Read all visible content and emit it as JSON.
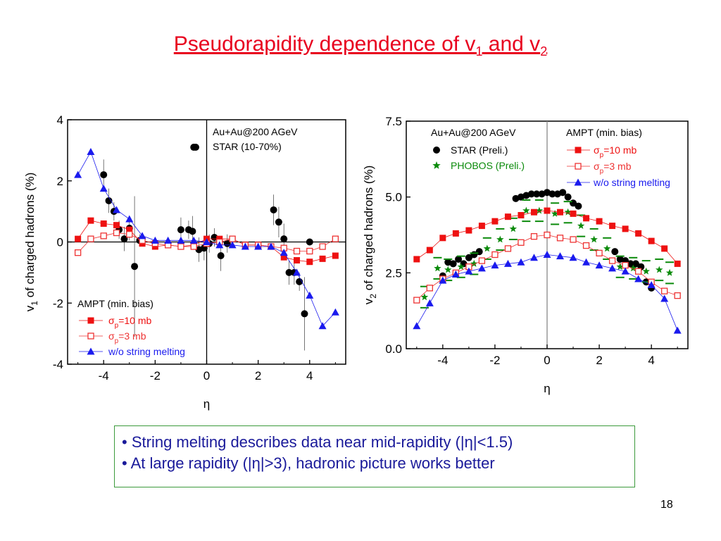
{
  "slide": {
    "title_main": "Pseudorapidity dependence of v",
    "title_sub1": "1",
    "title_mid": " and v",
    "title_sub2": "2",
    "bullets": [
      "String melting describes data near mid-rapidity (|η|<1.5)",
      "At large rapidity (|η|>3), hadronic picture works better"
    ],
    "page_number": "18"
  },
  "chart_data": [
    {
      "type": "scatter",
      "xlabel": "η",
      "ylabel_parts": [
        "v",
        "1",
        " of charged hadrons (%)"
      ],
      "xlim": [
        -5.4,
        5.4
      ],
      "ylim": [
        -4,
        4
      ],
      "xticks": [
        "-4",
        "-2",
        "0",
        "2",
        "4"
      ],
      "yticks": [
        "4",
        "2",
        "0",
        "-2",
        "-4"
      ],
      "xtick_values": [
        -4,
        -2,
        0,
        2,
        4
      ],
      "ytick_values": [
        4,
        2,
        0,
        -2,
        -4
      ],
      "annotation_lines": [
        "Au+Au@200 AGeV",
        "STAR (10-70%)"
      ],
      "legend_title": "AMPT (min. bias)",
      "series": [
        {
          "name": "STAR (10-70%)",
          "marker": "circle",
          "color": "#000000",
          "x": [
            -4.0,
            -3.8,
            -3.6,
            -3.4,
            -3.2,
            -3.0,
            -2.8,
            -2.6,
            -1.0,
            -0.7,
            -0.55,
            -0.3,
            -0.1,
            0.1,
            0.3,
            0.55,
            0.8,
            2.6,
            2.8,
            3.0,
            3.2,
            3.4,
            3.6,
            3.8,
            4.0,
            -0.5
          ],
          "y": [
            2.2,
            1.35,
            1.0,
            0.4,
            0.1,
            0.45,
            -0.8,
            0.05,
            0.4,
            0.4,
            0.35,
            -0.25,
            -0.2,
            -0.05,
            0.15,
            -0.45,
            -0.05,
            1.05,
            0.65,
            0.1,
            -1.0,
            -1.0,
            -1.3,
            -2.35,
            0.0,
            3.1
          ],
          "err": [
            0.5,
            0.4,
            0.3,
            0.3,
            0.4,
            0.4,
            2.3,
            0.2,
            0.4,
            0.3,
            0.5,
            0.4,
            0.4,
            0.3,
            0.3,
            0.5,
            0.3,
            0.5,
            0.5,
            0.5,
            0.4,
            0.4,
            0.3,
            1.2,
            0.0,
            0.0
          ]
        },
        {
          "name": "σp=10 mb",
          "marker": "square",
          "color": "#ee1111",
          "x": [
            -5.0,
            -4.5,
            -4.0,
            -3.5,
            -3.0,
            -2.5,
            -2.0,
            -1.5,
            -1.0,
            -0.5,
            0.0,
            0.5,
            1.0,
            1.5,
            2.0,
            2.5,
            3.0,
            3.5,
            4.0,
            4.5,
            5.0
          ],
          "y": [
            0.1,
            0.7,
            0.6,
            0.55,
            0.4,
            -0.05,
            -0.15,
            -0.1,
            -0.15,
            -0.1,
            0.1,
            0.1,
            0.1,
            -0.1,
            -0.1,
            -0.15,
            -0.5,
            -0.6,
            -0.65,
            -0.55,
            -0.45
          ]
        },
        {
          "name": "σp=3 mb",
          "marker": "open-square",
          "color": "#ee3333",
          "x": [
            -5.0,
            -4.5,
            -4.0,
            -3.5,
            -3.0,
            -2.5,
            -2.0,
            -1.5,
            -1.0,
            -0.5,
            0.0,
            0.5,
            1.0,
            1.5,
            2.0,
            2.5,
            3.0,
            3.5,
            4.0,
            4.5,
            5.0
          ],
          "y": [
            -0.35,
            0.1,
            0.2,
            0.3,
            0.25,
            0.05,
            -0.05,
            -0.1,
            -0.15,
            -0.15,
            -0.05,
            0.0,
            0.1,
            -0.1,
            -0.1,
            -0.15,
            -0.2,
            -0.3,
            -0.3,
            -0.15,
            0.1
          ]
        },
        {
          "name": "w/o string melting",
          "marker": "triangle",
          "color": "#1a1aee",
          "x": [
            -5.0,
            -4.5,
            -4.0,
            -3.5,
            -3.0,
            -2.5,
            -2.0,
            -1.5,
            -1.0,
            -0.5,
            0.0,
            0.5,
            1.0,
            1.5,
            2.0,
            2.5,
            3.0,
            3.5,
            4.0,
            4.5,
            5.0
          ],
          "y": [
            2.2,
            2.95,
            1.75,
            1.05,
            0.75,
            0.2,
            0.05,
            0.05,
            0.05,
            0.05,
            0.0,
            -0.1,
            -0.1,
            -0.15,
            -0.15,
            -0.15,
            -0.35,
            -1.0,
            -1.75,
            -2.75,
            -2.3
          ]
        }
      ],
      "legend_labels": [
        {
          "pre": "σ",
          "sub": "p",
          "post": "=10 mb"
        },
        {
          "pre": "σ",
          "sub": "p",
          "post": "=3   mb"
        },
        {
          "pre": "w/o string melting",
          "sub": "",
          "post": ""
        }
      ]
    },
    {
      "type": "scatter",
      "xlabel": "η",
      "ylabel_parts": [
        "v",
        "2",
        " of charged hadrons (%)"
      ],
      "xlim": [
        -5.4,
        5.4
      ],
      "ylim": [
        0,
        7.5
      ],
      "xticks": [
        "-4",
        "-2",
        "0",
        "2",
        "4"
      ],
      "yticks": [
        "7.5",
        "5.0",
        "2.5",
        "0.0"
      ],
      "xtick_values": [
        -4,
        -2,
        0,
        2,
        4
      ],
      "ytick_values": [
        7.5,
        5.0,
        2.5,
        0.0
      ],
      "annotation_lines": [
        "Au+Au@200 AGeV"
      ],
      "legend_title": "AMPT (min. bias)",
      "series": [
        {
          "name": "STAR (Preli.)",
          "marker": "circle",
          "color": "#000000",
          "x": [
            -4.0,
            -3.8,
            -3.6,
            -3.4,
            -3.2,
            -3.0,
            -2.8,
            -2.6,
            -1.2,
            -1.0,
            -0.8,
            -0.6,
            -0.4,
            -0.2,
            0.0,
            0.2,
            0.4,
            0.6,
            0.8,
            1.0,
            1.2,
            2.6,
            2.8,
            3.0,
            3.2,
            3.4,
            3.6,
            3.8,
            4.0
          ],
          "y": [
            2.4,
            2.85,
            2.8,
            2.95,
            2.8,
            3.0,
            3.1,
            3.2,
            4.95,
            5.0,
            5.05,
            5.1,
            5.1,
            5.1,
            5.15,
            5.1,
            5.1,
            5.15,
            5.0,
            4.8,
            4.7,
            3.2,
            2.95,
            2.9,
            2.8,
            2.8,
            2.7,
            2.2,
            2.0
          ]
        },
        {
          "name": "PHOBOS (Preli.)",
          "marker": "star",
          "color": "#0a8a0a",
          "x": [
            -4.7,
            -4.2,
            -3.8,
            -3.3,
            -2.8,
            -2.3,
            -1.8,
            -1.3,
            -0.8,
            -0.3,
            0.3,
            0.8,
            1.3,
            1.8,
            2.3,
            2.8,
            3.3,
            3.8,
            4.3,
            4.7
          ],
          "y": [
            1.7,
            2.65,
            2.6,
            2.7,
            2.8,
            3.3,
            3.6,
            3.95,
            4.55,
            4.55,
            4.45,
            4.5,
            4.05,
            3.6,
            3.3,
            2.7,
            2.65,
            2.55,
            2.6,
            2.5
          ]
        },
        {
          "name": "σp=10 mb",
          "marker": "square",
          "color": "#ee1111",
          "x": [
            -5.0,
            -4.5,
            -4.0,
            -3.5,
            -3.0,
            -2.5,
            -2.0,
            -1.5,
            -1.0,
            -0.5,
            0.0,
            0.5,
            1.0,
            1.5,
            2.0,
            2.5,
            3.0,
            3.5,
            4.0,
            4.5,
            5.0
          ],
          "y": [
            2.95,
            3.25,
            3.65,
            3.8,
            3.9,
            4.05,
            4.2,
            4.35,
            4.4,
            4.5,
            4.55,
            4.5,
            4.45,
            4.3,
            4.2,
            4.05,
            3.95,
            3.8,
            3.55,
            3.3,
            2.8
          ]
        },
        {
          "name": "σp=3 mb",
          "marker": "open-square",
          "color": "#ee3333",
          "x": [
            -5.0,
            -4.5,
            -4.0,
            -3.5,
            -3.0,
            -2.5,
            -2.0,
            -1.5,
            -1.0,
            -0.5,
            0.0,
            0.5,
            1.0,
            1.5,
            2.0,
            2.5,
            3.0,
            3.5,
            4.0,
            4.5,
            5.0
          ],
          "y": [
            1.6,
            2.0,
            2.3,
            2.5,
            2.7,
            2.9,
            3.1,
            3.3,
            3.5,
            3.7,
            3.75,
            3.65,
            3.6,
            3.4,
            3.15,
            2.9,
            2.75,
            2.55,
            2.2,
            1.9,
            1.75
          ]
        },
        {
          "name": "w/o string melting",
          "marker": "triangle",
          "color": "#1a1aee",
          "x": [
            -5.0,
            -4.5,
            -4.0,
            -3.5,
            -3.0,
            -2.5,
            -2.0,
            -1.5,
            -1.0,
            -0.5,
            0.0,
            0.5,
            1.0,
            1.5,
            2.0,
            2.5,
            3.0,
            3.5,
            4.0,
            4.5,
            5.0
          ],
          "y": [
            0.75,
            1.5,
            2.25,
            2.45,
            2.55,
            2.65,
            2.75,
            2.8,
            2.85,
            3.0,
            3.1,
            3.05,
            3.0,
            2.85,
            2.75,
            2.65,
            2.55,
            2.3,
            2.1,
            1.65,
            0.6
          ]
        }
      ],
      "legend_labels": [
        {
          "pre": "STAR (Preli.)",
          "sub": "",
          "post": ""
        },
        {
          "pre": "PHOBOS (Preli.)",
          "sub": "",
          "post": ""
        },
        {
          "pre": "σ",
          "sub": "p",
          "post": "=10 mb"
        },
        {
          "pre": "σ",
          "sub": "p",
          "post": "=3   mb"
        },
        {
          "pre": "w/o string melting",
          "sub": "",
          "post": ""
        }
      ]
    }
  ]
}
